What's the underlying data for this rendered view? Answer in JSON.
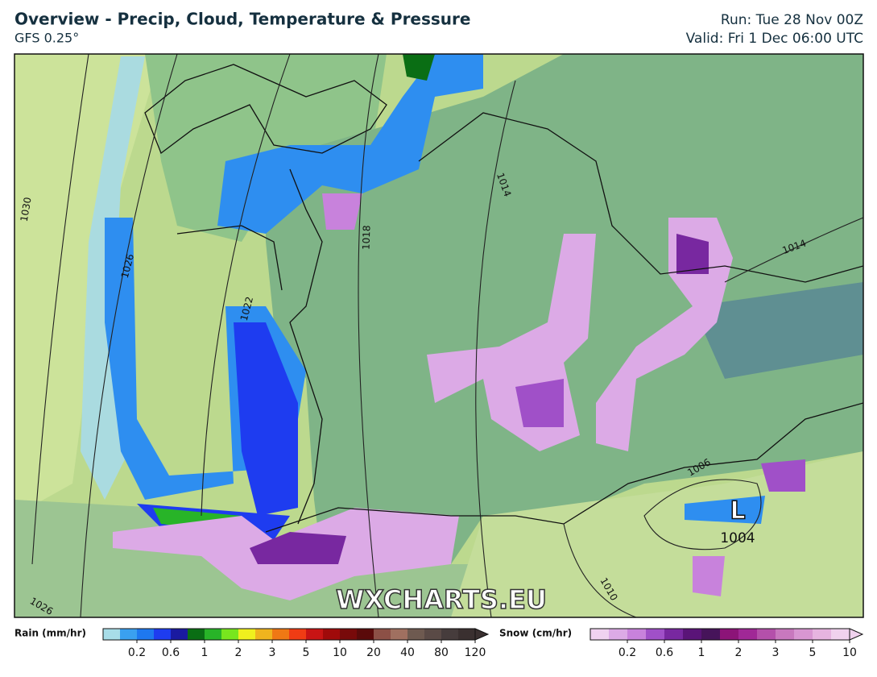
{
  "header": {
    "title": "Overview - Precip, Cloud, Temperature & Pressure",
    "model": "GFS 0.25°",
    "run": "Run: Tue 28 Nov 00Z",
    "valid": "Valid: Fri 1 Dec 06:00 UTC"
  },
  "map": {
    "isobar_labels": [
      "1030",
      "1026",
      "1022",
      "1018",
      "1014",
      "1014",
      "1010",
      "1006",
      "1026"
    ],
    "low_symbol": "L",
    "low_pressure": "1004",
    "watermark": "WXCHARTS.EU"
  },
  "legend": {
    "rain": {
      "title": "Rain (mm/hr)",
      "ticks": [
        0.2,
        0.6,
        1,
        2,
        3,
        5,
        10,
        20,
        40,
        80,
        120
      ],
      "colors": [
        "#a8dde8",
        "#3aa0f0",
        "#1e78f0",
        "#1e3cf0",
        "#1a1aa0",
        "#0a6e14",
        "#28b428",
        "#78e61e",
        "#f0f01e",
        "#f0b41e",
        "#f07814",
        "#f03c14",
        "#c81414",
        "#a00a0a",
        "#780a0a",
        "#5a0a0a",
        "#8c5046",
        "#a07060",
        "#6e5a50",
        "#5a4a46",
        "#463c3c",
        "#3a3030"
      ]
    },
    "snow": {
      "title": "Snow (cm/hr)",
      "ticks": [
        0.2,
        0.6,
        1,
        2,
        3,
        5,
        10
      ],
      "colors": [
        "#f0d2f0",
        "#dcaae6",
        "#c882dc",
        "#a050c8",
        "#7828a0",
        "#5a1478",
        "#46145a",
        "#8c1478",
        "#a02896",
        "#b450aa",
        "#c878be",
        "#d896d2",
        "#e6b4e0",
        "#f0d2ee"
      ]
    }
  }
}
